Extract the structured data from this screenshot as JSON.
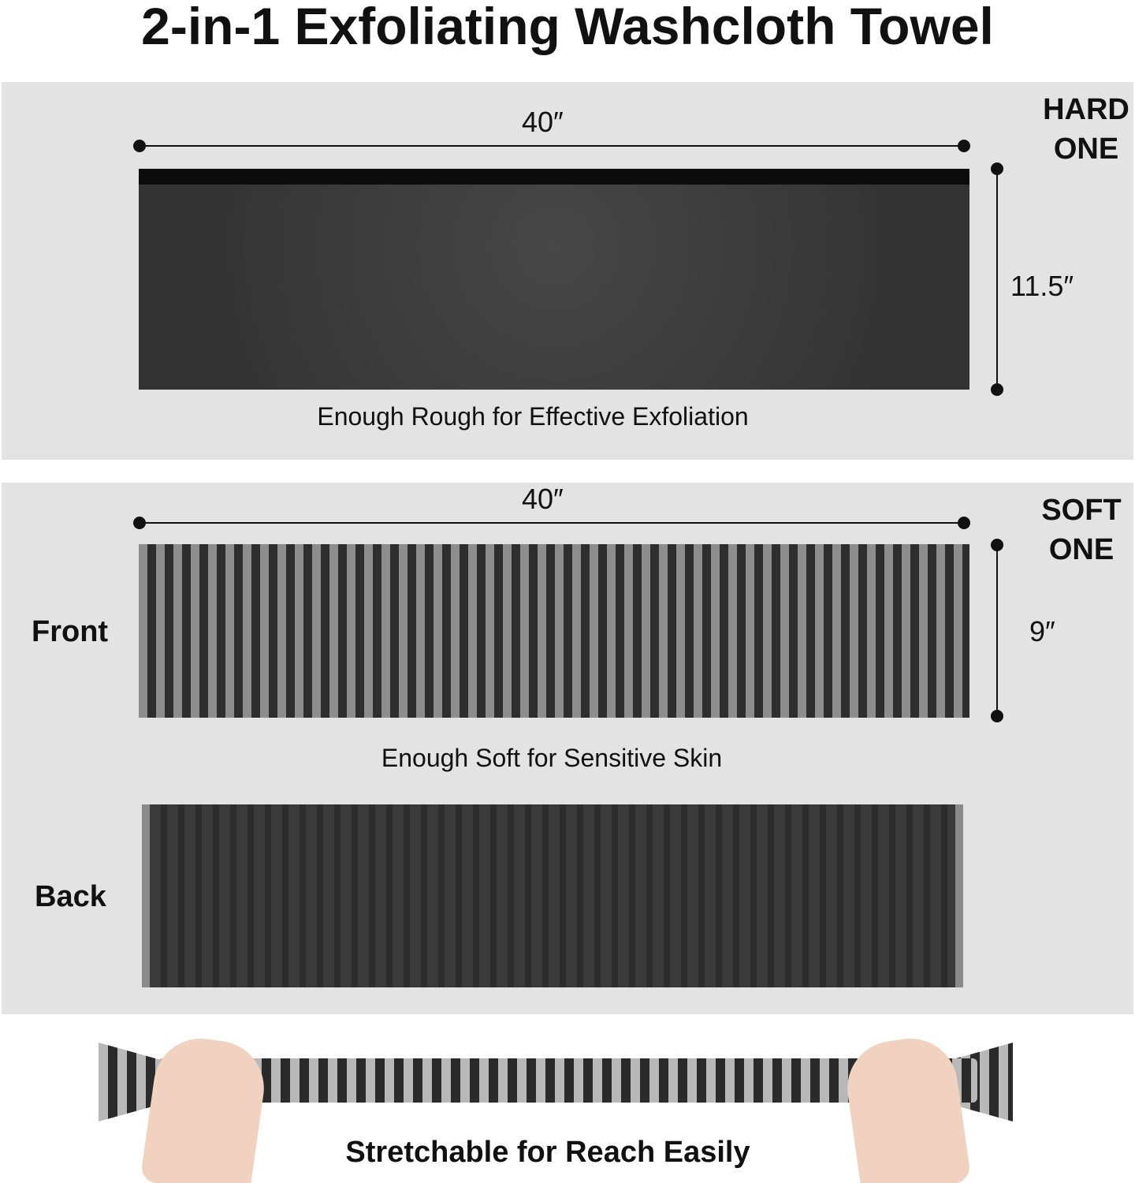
{
  "title": "2-in-1 Exfoliating Washcloth Towel",
  "hard": {
    "tag_line1": "HARD",
    "tag_line2": "ONE",
    "width": "40″",
    "height": "11.5″",
    "caption": "Enough Rough for Effective Exfoliation"
  },
  "soft": {
    "tag_line1": "SOFT",
    "tag_line2": "ONE",
    "width": "40″",
    "height": "9″",
    "front_label": "Front",
    "back_label": "Back",
    "caption": "Enough Soft for Sensitive Skin"
  },
  "bottom_caption": "Stretchable for Reach Easily"
}
